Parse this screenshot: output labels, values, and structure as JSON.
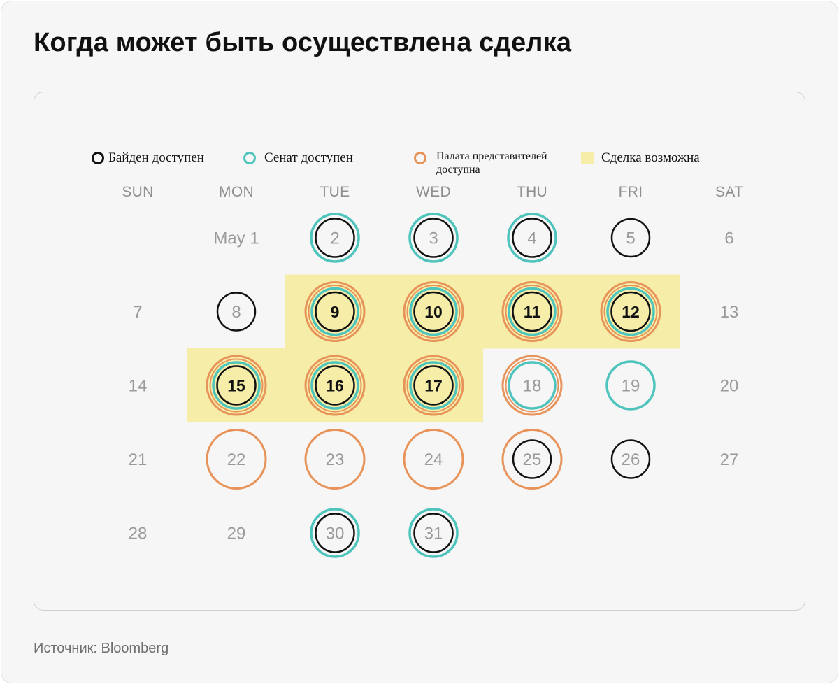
{
  "title": "Когда может быть осуществлена сделка",
  "source": "Источник: Bloomberg",
  "legend": [
    {
      "key": "biden",
      "label": "Байден доступен",
      "color": "#111111"
    },
    {
      "key": "senate",
      "label": "Сенат доступен",
      "color": "#4fc4bc"
    },
    {
      "key": "house",
      "label": "Палата представителей доступна",
      "color": "#e8935a"
    },
    {
      "key": "deal",
      "label": "Сделка возможна",
      "color": "#f5eda8"
    }
  ],
  "weekdays": [
    "SUN",
    "MON",
    "TUE",
    "WED",
    "THU",
    "FRI",
    "SAT"
  ],
  "colors": {
    "biden": "#111111",
    "senate": "#4fc4bc",
    "house": "#e8935a",
    "deal": "#f5eda8",
    "muted_text": "#8f8f8f",
    "inactive_text": "#9a9a9a"
  },
  "days": [
    {
      "label": "May 1",
      "day": 1,
      "week": 0,
      "weekday": 1,
      "biden": false,
      "senate": false,
      "house": false,
      "deal": false
    },
    {
      "label": "2",
      "day": 2,
      "week": 0,
      "weekday": 2,
      "biden": true,
      "senate": true,
      "house": false,
      "deal": false
    },
    {
      "label": "3",
      "day": 3,
      "week": 0,
      "weekday": 3,
      "biden": true,
      "senate": true,
      "house": false,
      "deal": false
    },
    {
      "label": "4",
      "day": 4,
      "week": 0,
      "weekday": 4,
      "biden": true,
      "senate": true,
      "house": false,
      "deal": false
    },
    {
      "label": "5",
      "day": 5,
      "week": 0,
      "weekday": 5,
      "biden": true,
      "senate": false,
      "house": false,
      "deal": false
    },
    {
      "label": "6",
      "day": 6,
      "week": 0,
      "weekday": 6,
      "biden": false,
      "senate": false,
      "house": false,
      "deal": false
    },
    {
      "label": "7",
      "day": 7,
      "week": 1,
      "weekday": 0,
      "biden": false,
      "senate": false,
      "house": false,
      "deal": false
    },
    {
      "label": "8",
      "day": 8,
      "week": 1,
      "weekday": 1,
      "biden": true,
      "senate": false,
      "house": false,
      "deal": false
    },
    {
      "label": "9",
      "day": 9,
      "week": 1,
      "weekday": 2,
      "biden": true,
      "senate": true,
      "house": true,
      "deal": true
    },
    {
      "label": "10",
      "day": 10,
      "week": 1,
      "weekday": 3,
      "biden": true,
      "senate": true,
      "house": true,
      "deal": true
    },
    {
      "label": "11",
      "day": 11,
      "week": 1,
      "weekday": 4,
      "biden": true,
      "senate": true,
      "house": true,
      "deal": true
    },
    {
      "label": "12",
      "day": 12,
      "week": 1,
      "weekday": 5,
      "biden": true,
      "senate": true,
      "house": true,
      "deal": true
    },
    {
      "label": "13",
      "day": 13,
      "week": 1,
      "weekday": 6,
      "biden": false,
      "senate": false,
      "house": false,
      "deal": false
    },
    {
      "label": "14",
      "day": 14,
      "week": 2,
      "weekday": 0,
      "biden": false,
      "senate": false,
      "house": false,
      "deal": false
    },
    {
      "label": "15",
      "day": 15,
      "week": 2,
      "weekday": 1,
      "biden": true,
      "senate": true,
      "house": true,
      "deal": true
    },
    {
      "label": "16",
      "day": 16,
      "week": 2,
      "weekday": 2,
      "biden": true,
      "senate": true,
      "house": true,
      "deal": true
    },
    {
      "label": "17",
      "day": 17,
      "week": 2,
      "weekday": 3,
      "biden": true,
      "senate": true,
      "house": true,
      "deal": true
    },
    {
      "label": "18",
      "day": 18,
      "week": 2,
      "weekday": 4,
      "biden": false,
      "senate": true,
      "house": true,
      "deal": false
    },
    {
      "label": "19",
      "day": 19,
      "week": 2,
      "weekday": 5,
      "biden": false,
      "senate": true,
      "house": false,
      "deal": false
    },
    {
      "label": "20",
      "day": 20,
      "week": 2,
      "weekday": 6,
      "biden": false,
      "senate": false,
      "house": false,
      "deal": false
    },
    {
      "label": "21",
      "day": 21,
      "week": 3,
      "weekday": 0,
      "biden": false,
      "senate": false,
      "house": false,
      "deal": false
    },
    {
      "label": "22",
      "day": 22,
      "week": 3,
      "weekday": 1,
      "biden": false,
      "senate": false,
      "house": true,
      "deal": false
    },
    {
      "label": "23",
      "day": 23,
      "week": 3,
      "weekday": 2,
      "biden": false,
      "senate": false,
      "house": true,
      "deal": false
    },
    {
      "label": "24",
      "day": 24,
      "week": 3,
      "weekday": 3,
      "biden": false,
      "senate": false,
      "house": true,
      "deal": false
    },
    {
      "label": "25",
      "day": 25,
      "week": 3,
      "weekday": 4,
      "biden": true,
      "senate": false,
      "house": true,
      "deal": false
    },
    {
      "label": "26",
      "day": 26,
      "week": 3,
      "weekday": 5,
      "biden": true,
      "senate": false,
      "house": false,
      "deal": false
    },
    {
      "label": "27",
      "day": 27,
      "week": 3,
      "weekday": 6,
      "biden": false,
      "senate": false,
      "house": false,
      "deal": false
    },
    {
      "label": "28",
      "day": 28,
      "week": 4,
      "weekday": 0,
      "biden": false,
      "senate": false,
      "house": false,
      "deal": false
    },
    {
      "label": "29",
      "day": 29,
      "week": 4,
      "weekday": 1,
      "biden": false,
      "senate": false,
      "house": false,
      "deal": false
    },
    {
      "label": "30",
      "day": 30,
      "week": 4,
      "weekday": 2,
      "biden": true,
      "senate": true,
      "house": false,
      "deal": false
    },
    {
      "label": "31",
      "day": 31,
      "week": 4,
      "weekday": 3,
      "biden": true,
      "senate": true,
      "house": false,
      "deal": false
    }
  ]
}
